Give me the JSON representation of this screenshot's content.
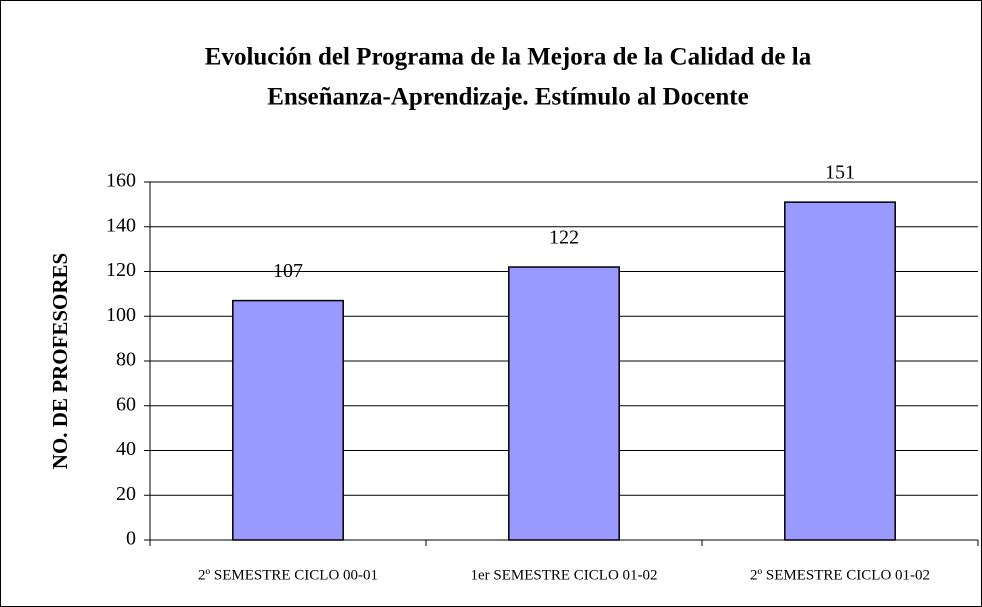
{
  "chart_data": {
    "type": "bar",
    "title": [
      "Evolución del Programa de la Mejora de la Calidad de la",
      "Enseñanza-Aprendizaje. Estímulo al Docente"
    ],
    "y_label": "NO. DE PROFESORES",
    "categories": [
      "2º SEMESTRE CICLO 00-01",
      "1er SEMESTRE CICLO 01-02",
      "2º SEMESTRE CICLO 01-02"
    ],
    "values": [
      107,
      122,
      151
    ],
    "color": "#9999ff",
    "ylim": [
      0,
      160
    ],
    "yticks": [
      0,
      20,
      40,
      60,
      80,
      100,
      120,
      140,
      160
    ],
    "grid": true
  }
}
